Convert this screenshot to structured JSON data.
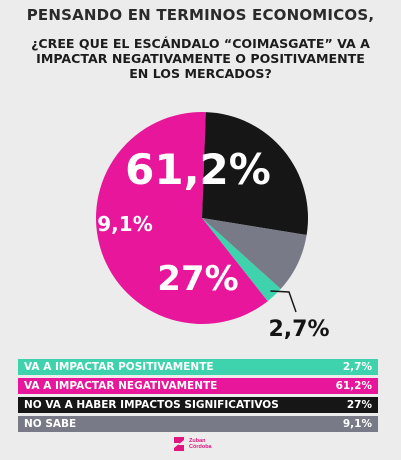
{
  "header": {
    "title": "PENSANDO EN TERMINOS ECONOMICOS,",
    "question_lines": [
      "¿CREE QUE EL ESCÁNDALO “COIMASGATE” VA A",
      "IMPACTAR NEGATIVAMENTE O POSITIVAMENTE",
      "EN LOS MERCADOS?"
    ]
  },
  "chart_data": {
    "type": "pie",
    "slices": [
      {
        "label": "VA A IMPACTAR POSITIVAMENTE",
        "value": 2.7,
        "display": "2,7%",
        "color": "#3ed3ad"
      },
      {
        "label": "VA A IMPACTAR NEGATIVAMENTE",
        "value": 61.2,
        "display": "61,2%",
        "color": "#e8169a"
      },
      {
        "label": "NO VA A HABER IMPACTOS SIGNIFICATIVOS",
        "value": 27,
        "display": "27%",
        "color": "#161616"
      },
      {
        "label": "NO SABE",
        "value": 9.1,
        "display": "9,1%",
        "color": "#787a87"
      }
    ],
    "legend_position": "bottom"
  },
  "brand": {
    "line1": "Zuban",
    "line2": "Córdoba",
    "color": "#e0157f"
  }
}
